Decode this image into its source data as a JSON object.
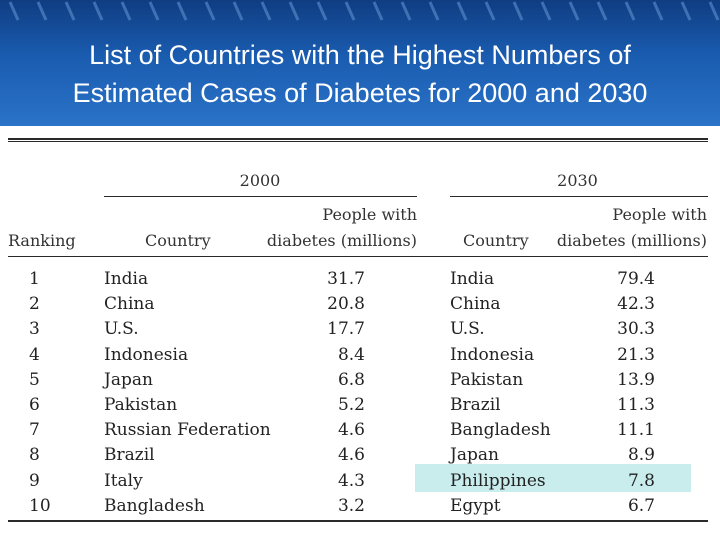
{
  "title": {
    "line1": "List of Countries with the Highest Numbers of",
    "line2": "Estimated Cases of Diabetes for 2000 and 2030"
  },
  "table": {
    "year_2000": "2000",
    "year_2030": "2030",
    "ranking_header": "Ranking",
    "country_header": "Country",
    "people_header_line1": "People with",
    "people_header_line2": "diabetes (millions)",
    "highlight_color": "#c9ecec",
    "rows": [
      {
        "rank": "1",
        "c2000": "India",
        "v2000": "31.7",
        "c2030": "India",
        "v2030": "79.4"
      },
      {
        "rank": "2",
        "c2000": "China",
        "v2000": "20.8",
        "c2030": "China",
        "v2030": "42.3"
      },
      {
        "rank": "3",
        "c2000": "U.S.",
        "v2000": "17.7",
        "c2030": "U.S.",
        "v2030": "30.3"
      },
      {
        "rank": "4",
        "c2000": "Indonesia",
        "v2000": "8.4",
        "c2030": "Indonesia",
        "v2030": "21.3"
      },
      {
        "rank": "5",
        "c2000": "Japan",
        "v2000": "6.8",
        "c2030": "Pakistan",
        "v2030": "13.9"
      },
      {
        "rank": "6",
        "c2000": "Pakistan",
        "v2000": "5.2",
        "c2030": "Brazil",
        "v2030": "11.3"
      },
      {
        "rank": "7",
        "c2000": "Russian Federation",
        "v2000": "4.6",
        "c2030": "Bangladesh",
        "v2030": "11.1"
      },
      {
        "rank": "8",
        "c2000": "Brazil",
        "v2000": "4.6",
        "c2030": "Japan",
        "v2030": "8.9"
      },
      {
        "rank": "9",
        "c2000": "Italy",
        "v2000": "4.3",
        "c2030": "Philippines",
        "v2030": "7.8"
      },
      {
        "rank": "10",
        "c2000": "Bangladesh",
        "v2000": "3.2",
        "c2030": "Egypt",
        "v2030": "6.7"
      }
    ]
  }
}
